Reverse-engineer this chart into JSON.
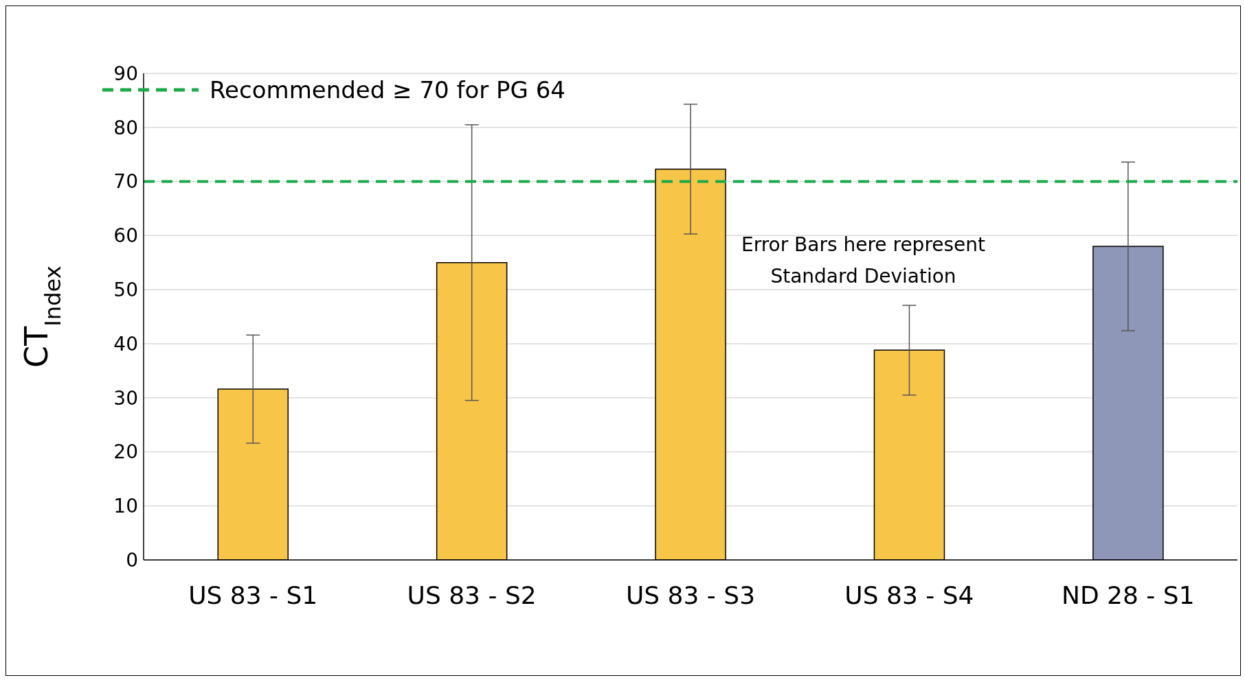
{
  "chart_data": {
    "type": "bar",
    "ylabel": "CT$_{Index}$",
    "categories": [
      "US 83 - S1",
      "US 83 - S2",
      "US 83 - S3",
      "US 83 - S4",
      "ND 28 - S1"
    ],
    "values": [
      31.6,
      55.0,
      72.3,
      38.8,
      58.0
    ],
    "errors": [
      10.0,
      25.5,
      12.0,
      8.3,
      15.6
    ],
    "colors": [
      "#f7c548",
      "#f7c548",
      "#f7c548",
      "#f7c548",
      "#8e97b8"
    ],
    "ylim": [
      0,
      90
    ],
    "yticks": [
      0,
      10,
      20,
      30,
      40,
      50,
      60,
      70,
      80,
      90
    ],
    "grid": "y",
    "ref_lines": [
      {
        "axis": "y",
        "value": 70,
        "label": "Recommended ≥ 70 for PG 64",
        "color": "#1aaa4a",
        "line_style": "dashed"
      }
    ],
    "legend": "top left",
    "annotations": [
      "Error Bars here represent Standard Deviation"
    ]
  }
}
